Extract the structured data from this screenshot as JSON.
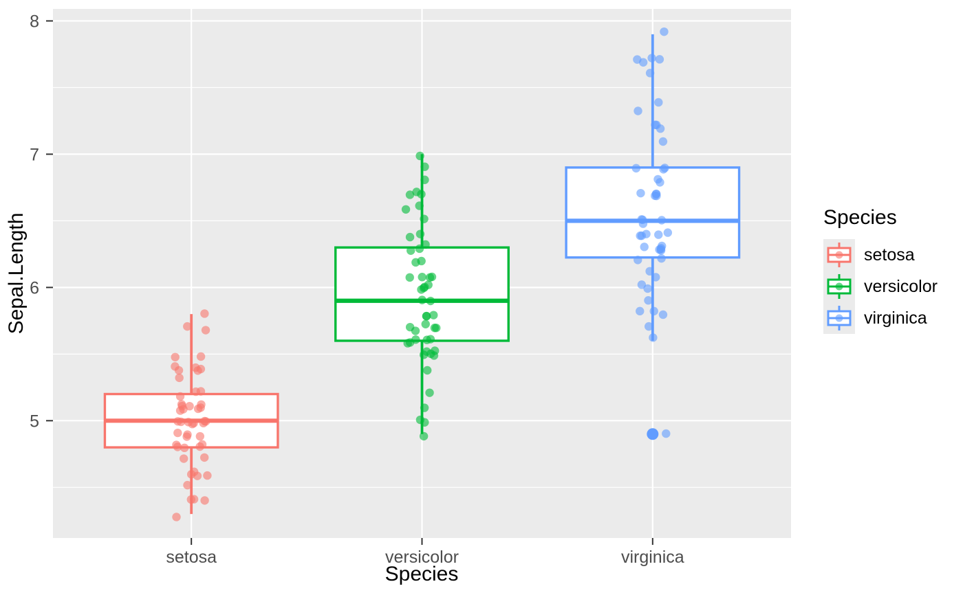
{
  "figure": {
    "x_axis_title": "Species",
    "y_axis_title": "Sepal.Length"
  },
  "legend": {
    "title": "Species",
    "items": [
      {
        "label": "setosa",
        "color": "#F8766D"
      },
      {
        "label": "versicolor",
        "color": "#00BA38"
      },
      {
        "label": "virginica",
        "color": "#619CFF"
      }
    ]
  },
  "chart_data": {
    "type": "boxplot",
    "subtype": "boxplot-with-jittered-points",
    "title": "",
    "xlabel": "Species",
    "ylabel": "Sepal.Length",
    "categories": [
      "setosa",
      "versicolor",
      "virginica"
    ],
    "x_tick_labels": [
      "setosa",
      "versicolor",
      "virginica"
    ],
    "y_major_ticks": [
      5,
      6,
      7,
      8
    ],
    "y_minor_ticks": [
      4.5,
      5.5,
      6.5,
      7.5
    ],
    "ylim": [
      4.12,
      8.09
    ],
    "xlim": [
      0.4,
      3.6
    ],
    "grid": true,
    "legend_position": "right",
    "panel_background": "#EBEBEB",
    "grid_color": "#FFFFFF",
    "tick_color": "#333333",
    "tick_label_color": "#4D4D4D",
    "point_alpha": 0.6,
    "box_fill": "#FFFFFF",
    "series": [
      {
        "name": "setosa",
        "color": "#F8766D",
        "box": {
          "whisker_low": 4.3,
          "q1": 4.8,
          "median": 5.0,
          "q3": 5.2,
          "whisker_high": 5.8,
          "outliers": []
        },
        "values": [
          5.1,
          4.9,
          4.7,
          4.6,
          5.0,
          5.4,
          4.6,
          5.0,
          4.4,
          4.9,
          5.4,
          4.8,
          4.8,
          4.3,
          5.8,
          5.7,
          5.4,
          5.1,
          5.7,
          5.1,
          5.4,
          5.1,
          4.6,
          5.1,
          4.8,
          5.0,
          5.0,
          5.2,
          5.2,
          4.7,
          4.8,
          5.4,
          5.2,
          5.5,
          4.9,
          5.0,
          5.5,
          4.9,
          4.4,
          5.1,
          5.0,
          4.5,
          4.4,
          5.0,
          5.1,
          4.8,
          5.1,
          4.6,
          5.3,
          5.0
        ]
      },
      {
        "name": "versicolor",
        "color": "#00BA38",
        "box": {
          "whisker_low": 4.9,
          "q1": 5.6,
          "median": 5.9,
          "q3": 6.3,
          "whisker_high": 7.0,
          "outliers": []
        },
        "values": [
          7.0,
          6.4,
          6.9,
          5.5,
          6.5,
          5.7,
          6.3,
          4.9,
          6.6,
          5.2,
          5.0,
          5.9,
          6.0,
          6.1,
          5.6,
          6.7,
          5.6,
          5.8,
          6.2,
          5.6,
          5.9,
          6.1,
          6.3,
          6.1,
          6.4,
          6.6,
          6.8,
          6.7,
          6.0,
          5.7,
          5.5,
          5.5,
          5.8,
          6.0,
          5.4,
          6.0,
          6.7,
          6.3,
          5.6,
          5.5,
          5.5,
          6.1,
          5.8,
          5.0,
          5.6,
          5.7,
          5.7,
          6.2,
          5.1,
          5.7
        ]
      },
      {
        "name": "virginica",
        "color": "#619CFF",
        "box": {
          "whisker_low": 5.6,
          "q1": 6.225,
          "median": 6.5,
          "q3": 6.9,
          "whisker_high": 7.9,
          "outliers": [
            4.9
          ]
        },
        "values": [
          6.3,
          5.8,
          7.1,
          6.3,
          6.5,
          7.6,
          4.9,
          7.3,
          6.7,
          7.2,
          6.5,
          6.4,
          6.8,
          5.7,
          5.8,
          6.4,
          6.5,
          7.7,
          7.7,
          6.0,
          6.9,
          5.6,
          7.7,
          6.3,
          6.7,
          7.2,
          6.2,
          6.1,
          6.4,
          7.2,
          7.4,
          7.9,
          6.4,
          6.3,
          6.1,
          7.7,
          6.3,
          6.4,
          6.0,
          6.9,
          6.7,
          6.9,
          5.8,
          6.8,
          6.7,
          6.7,
          6.3,
          6.5,
          6.2,
          5.9
        ]
      }
    ]
  }
}
